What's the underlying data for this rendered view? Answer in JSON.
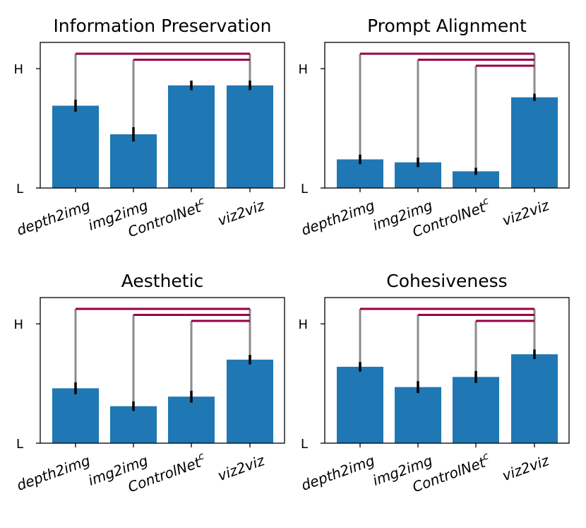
{
  "chart_data": [
    {
      "type": "bar",
      "title": "Information Preservation",
      "categories": [
        "depth2img",
        "img2img",
        "ControlNet",
        "viz2viz"
      ],
      "category_superscripts": [
        "",
        "",
        "c",
        ""
      ],
      "values": [
        0.69,
        0.45,
        0.86,
        0.86
      ],
      "errors": [
        0.05,
        0.06,
        0.04,
        0.04
      ],
      "ytick_labels": [
        "L",
        "H"
      ],
      "ytick_values": [
        0,
        1
      ],
      "ylim": [
        0,
        1.22
      ],
      "significance_brackets": [
        [
          0,
          3
        ],
        [
          1,
          3
        ]
      ],
      "bar_color": "#1f77b4",
      "bracket_color": "#990044"
    },
    {
      "type": "bar",
      "title": "Prompt Alignment",
      "categories": [
        "depth2img",
        "img2img",
        "ControlNet",
        "viz2viz"
      ],
      "category_superscripts": [
        "",
        "",
        "c",
        ""
      ],
      "values": [
        0.24,
        0.215,
        0.14,
        0.76
      ],
      "errors": [
        0.04,
        0.04,
        0.03,
        0.03
      ],
      "ytick_labels": [
        "L",
        "H"
      ],
      "ytick_values": [
        0,
        1
      ],
      "ylim": [
        0,
        1.22
      ],
      "significance_brackets": [
        [
          0,
          3
        ],
        [
          1,
          3
        ],
        [
          2,
          3
        ]
      ],
      "bar_color": "#1f77b4",
      "bracket_color": "#990044"
    },
    {
      "type": "bar",
      "title": "Aesthetic",
      "categories": [
        "depth2img",
        "img2img",
        "ControlNet",
        "viz2viz"
      ],
      "category_superscripts": [
        "",
        "",
        "c",
        ""
      ],
      "values": [
        0.46,
        0.31,
        0.39,
        0.7
      ],
      "errors": [
        0.05,
        0.04,
        0.05,
        0.04
      ],
      "ytick_labels": [
        "L",
        "H"
      ],
      "ytick_values": [
        0,
        1
      ],
      "ylim": [
        0,
        1.22
      ],
      "significance_brackets": [
        [
          0,
          3
        ],
        [
          1,
          3
        ],
        [
          2,
          3
        ]
      ],
      "bar_color": "#1f77b4",
      "bracket_color": "#990044"
    },
    {
      "type": "bar",
      "title": "Cohesiveness",
      "categories": [
        "depth2img",
        "img2img",
        "ControlNet",
        "viz2viz"
      ],
      "category_superscripts": [
        "",
        "",
        "c",
        ""
      ],
      "values": [
        0.64,
        0.47,
        0.555,
        0.745
      ],
      "errors": [
        0.04,
        0.05,
        0.05,
        0.04
      ],
      "ytick_labels": [
        "L",
        "H"
      ],
      "ytick_values": [
        0,
        1
      ],
      "ylim": [
        0,
        1.22
      ],
      "significance_brackets": [
        [
          0,
          3
        ],
        [
          1,
          3
        ],
        [
          2,
          3
        ]
      ],
      "bar_color": "#1f77b4",
      "bracket_color": "#990044"
    }
  ]
}
